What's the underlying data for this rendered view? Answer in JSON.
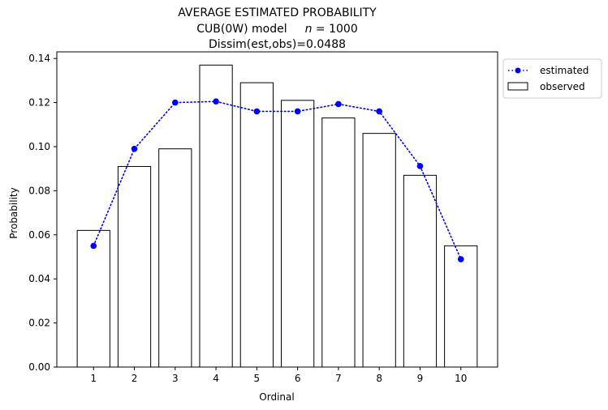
{
  "chart_data": {
    "type": "bar",
    "title_line1": "AVERAGE ESTIMATED PROBABILITY",
    "title_line2_prefix": "CUB(0W) model",
    "title_line2_n_var": "n",
    "title_line2_n_eq": " = 1000",
    "title_line3": "Dissim(est,obs)=0.0488",
    "xlabel": "Ordinal",
    "ylabel": "Probability",
    "categories": [
      "1",
      "2",
      "3",
      "4",
      "5",
      "6",
      "7",
      "8",
      "9",
      "10"
    ],
    "x": [
      1,
      2,
      3,
      4,
      5,
      6,
      7,
      8,
      9,
      10
    ],
    "ylim": [
      0,
      0.143
    ],
    "yticks": [
      0.0,
      0.02,
      0.04,
      0.06,
      0.08,
      0.1,
      0.12,
      0.14
    ],
    "ytick_labels": [
      "0.00",
      "0.02",
      "0.04",
      "0.06",
      "0.08",
      "0.10",
      "0.12",
      "0.14"
    ],
    "grid": false,
    "legend_position": "outside-top-right",
    "series": [
      {
        "name": "estimated",
        "kind": "line",
        "style": "dotted",
        "marker": "circle",
        "color": "#0000ff",
        "values": [
          0.055,
          0.099,
          0.12,
          0.1205,
          0.116,
          0.116,
          0.1193,
          0.116,
          0.0912,
          0.0489
        ]
      },
      {
        "name": "observed",
        "kind": "bar",
        "fill": "#ffffff",
        "edgecolor": "#000000",
        "values": [
          0.062,
          0.091,
          0.099,
          0.137,
          0.129,
          0.121,
          0.113,
          0.106,
          0.087,
          0.055
        ]
      }
    ]
  }
}
